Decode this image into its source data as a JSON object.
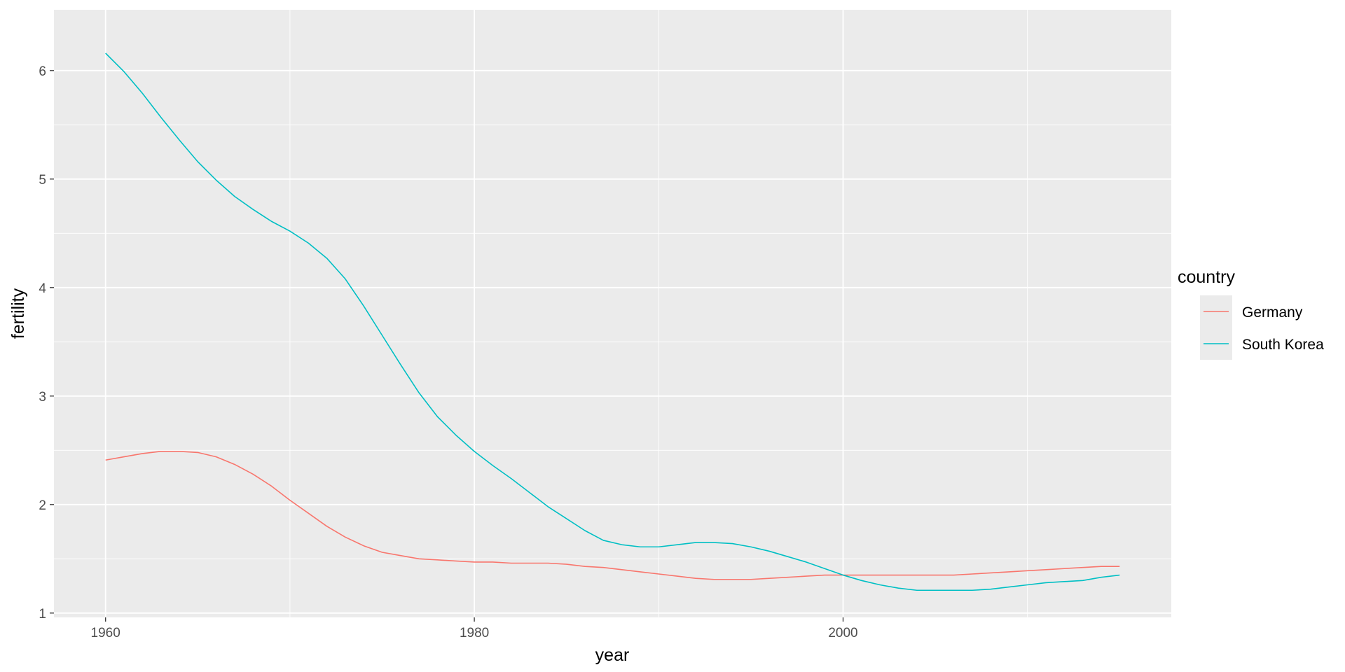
{
  "chart_data": {
    "type": "line",
    "title": "",
    "xlabel": "year",
    "ylabel": "fertility",
    "xlim": [
      1957.2,
      2017.8
    ],
    "ylim": [
      0.96,
      6.56
    ],
    "x_ticks": [
      1960,
      1980,
      2000
    ],
    "x_tick_labels": [
      "1960",
      "1980",
      "2000"
    ],
    "y_ticks": [
      1,
      2,
      3,
      4,
      5,
      6
    ],
    "y_tick_labels": [
      "1",
      "2",
      "3",
      "4",
      "5",
      "6"
    ],
    "grid": true,
    "legend": {
      "title": "country",
      "position": "right"
    },
    "series": [
      {
        "name": "Germany",
        "color": "#F8766D",
        "points": [
          [
            1960,
            2.41
          ],
          [
            1961,
            2.44
          ],
          [
            1962,
            2.47
          ],
          [
            1963,
            2.49
          ],
          [
            1964,
            2.49
          ],
          [
            1965,
            2.48
          ],
          [
            1966,
            2.44
          ],
          [
            1967,
            2.37
          ],
          [
            1968,
            2.28
          ],
          [
            1969,
            2.17
          ],
          [
            1970,
            2.04
          ],
          [
            1971,
            1.92
          ],
          [
            1972,
            1.8
          ],
          [
            1973,
            1.7
          ],
          [
            1974,
            1.62
          ],
          [
            1975,
            1.56
          ],
          [
            1976,
            1.53
          ],
          [
            1977,
            1.5
          ],
          [
            1978,
            1.49
          ],
          [
            1979,
            1.48
          ],
          [
            1980,
            1.47
          ],
          [
            1981,
            1.47
          ],
          [
            1982,
            1.46
          ],
          [
            1983,
            1.46
          ],
          [
            1984,
            1.46
          ],
          [
            1985,
            1.45
          ],
          [
            1986,
            1.43
          ],
          [
            1987,
            1.42
          ],
          [
            1988,
            1.4
          ],
          [
            1989,
            1.38
          ],
          [
            1990,
            1.36
          ],
          [
            1991,
            1.34
          ],
          [
            1992,
            1.32
          ],
          [
            1993,
            1.31
          ],
          [
            1994,
            1.31
          ],
          [
            1995,
            1.31
          ],
          [
            1996,
            1.32
          ],
          [
            1997,
            1.33
          ],
          [
            1998,
            1.34
          ],
          [
            1999,
            1.35
          ],
          [
            2000,
            1.35
          ],
          [
            2001,
            1.35
          ],
          [
            2002,
            1.35
          ],
          [
            2003,
            1.35
          ],
          [
            2004,
            1.35
          ],
          [
            2005,
            1.35
          ],
          [
            2006,
            1.35
          ],
          [
            2007,
            1.36
          ],
          [
            2008,
            1.37
          ],
          [
            2009,
            1.38
          ],
          [
            2010,
            1.39
          ],
          [
            2011,
            1.4
          ],
          [
            2012,
            1.41
          ],
          [
            2013,
            1.42
          ],
          [
            2014,
            1.43
          ],
          [
            2015,
            1.43
          ]
        ]
      },
      {
        "name": "South Korea",
        "color": "#00BFC4",
        "points": [
          [
            1960,
            6.16
          ],
          [
            1961,
            5.99
          ],
          [
            1962,
            5.79
          ],
          [
            1963,
            5.57
          ],
          [
            1964,
            5.36
          ],
          [
            1965,
            5.16
          ],
          [
            1966,
            4.99
          ],
          [
            1967,
            4.84
          ],
          [
            1968,
            4.72
          ],
          [
            1969,
            4.61
          ],
          [
            1970,
            4.52
          ],
          [
            1971,
            4.41
          ],
          [
            1972,
            4.27
          ],
          [
            1973,
            4.08
          ],
          [
            1974,
            3.83
          ],
          [
            1975,
            3.56
          ],
          [
            1976,
            3.29
          ],
          [
            1977,
            3.03
          ],
          [
            1978,
            2.81
          ],
          [
            1979,
            2.64
          ],
          [
            1980,
            2.49
          ],
          [
            1981,
            2.36
          ],
          [
            1982,
            2.24
          ],
          [
            1983,
            2.11
          ],
          [
            1984,
            1.98
          ],
          [
            1985,
            1.87
          ],
          [
            1986,
            1.76
          ],
          [
            1987,
            1.67
          ],
          [
            1988,
            1.63
          ],
          [
            1989,
            1.61
          ],
          [
            1990,
            1.61
          ],
          [
            1991,
            1.63
          ],
          [
            1992,
            1.65
          ],
          [
            1993,
            1.65
          ],
          [
            1994,
            1.64
          ],
          [
            1995,
            1.61
          ],
          [
            1996,
            1.57
          ],
          [
            1997,
            1.52
          ],
          [
            1998,
            1.47
          ],
          [
            1999,
            1.41
          ],
          [
            2000,
            1.35
          ],
          [
            2001,
            1.3
          ],
          [
            2002,
            1.26
          ],
          [
            2003,
            1.23
          ],
          [
            2004,
            1.21
          ],
          [
            2005,
            1.21
          ],
          [
            2006,
            1.21
          ],
          [
            2007,
            1.21
          ],
          [
            2008,
            1.22
          ],
          [
            2009,
            1.24
          ],
          [
            2010,
            1.26
          ],
          [
            2011,
            1.28
          ],
          [
            2012,
            1.29
          ],
          [
            2013,
            1.3
          ],
          [
            2014,
            1.33
          ],
          [
            2015,
            1.35
          ]
        ]
      }
    ]
  }
}
